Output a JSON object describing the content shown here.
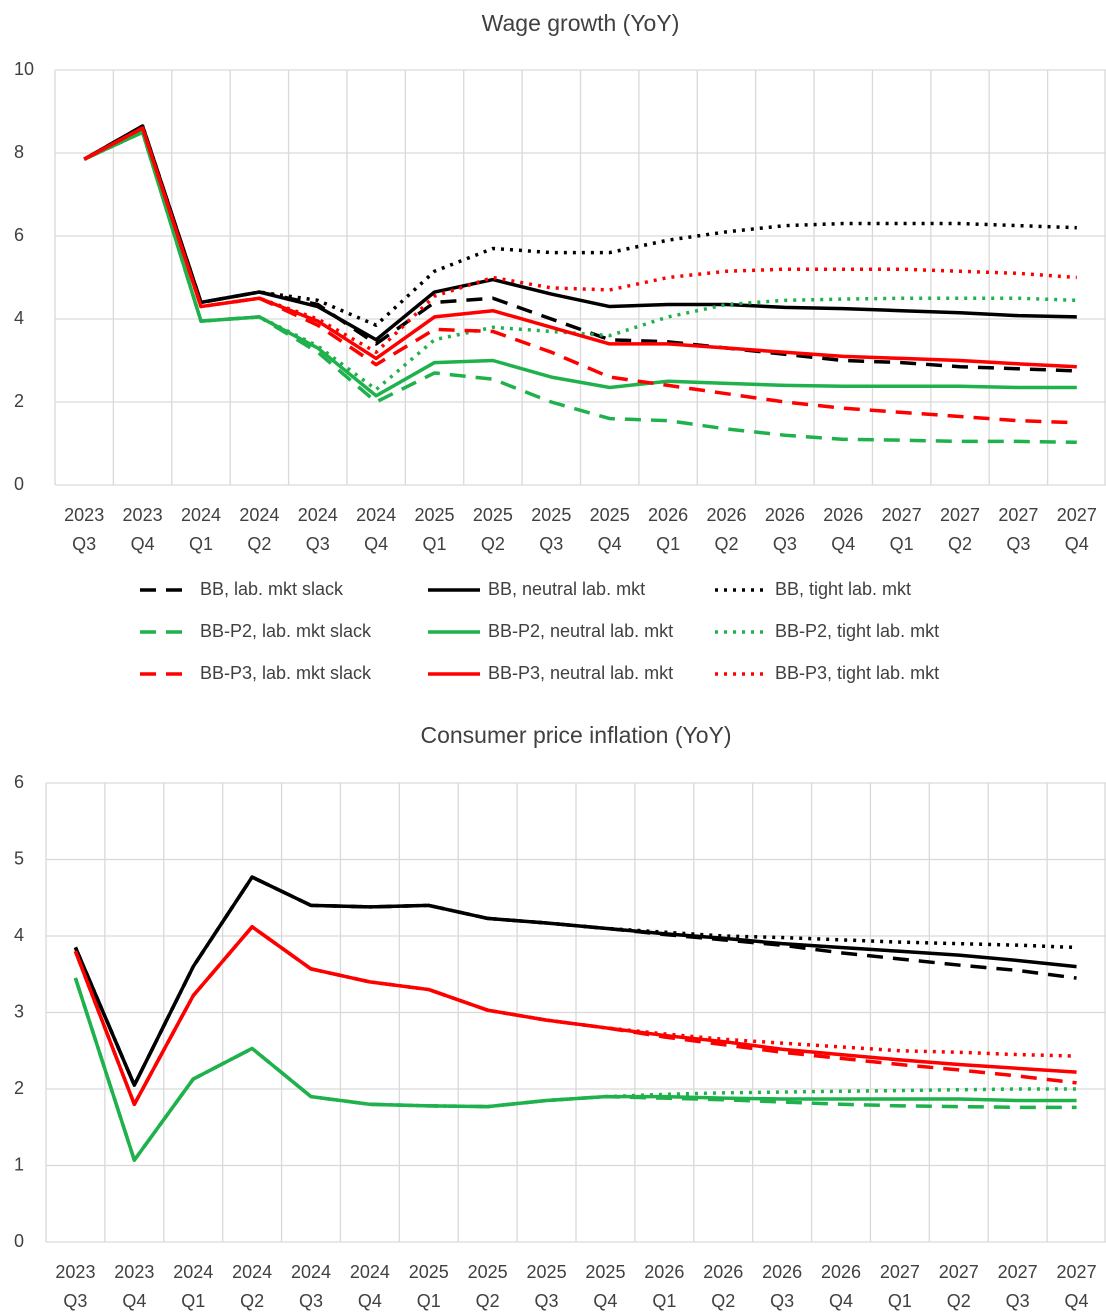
{
  "chart_data": [
    {
      "type": "line",
      "title": "Wage growth (YoY)",
      "categories": [
        [
          "2023",
          "Q3"
        ],
        [
          "2023",
          "Q4"
        ],
        [
          "2024",
          "Q1"
        ],
        [
          "2024",
          "Q2"
        ],
        [
          "2024",
          "Q3"
        ],
        [
          "2024",
          "Q4"
        ],
        [
          "2025",
          "Q1"
        ],
        [
          "2025",
          "Q2"
        ],
        [
          "2025",
          "Q3"
        ],
        [
          "2025",
          "Q4"
        ],
        [
          "2026",
          "Q1"
        ],
        [
          "2026",
          "Q2"
        ],
        [
          "2026",
          "Q3"
        ],
        [
          "2026",
          "Q4"
        ],
        [
          "2027",
          "Q1"
        ],
        [
          "2027",
          "Q2"
        ],
        [
          "2027",
          "Q3"
        ],
        [
          "2027",
          "Q4"
        ]
      ],
      "ylim": [
        0,
        10
      ],
      "yticks": [
        0,
        2,
        4,
        6,
        8,
        10
      ],
      "grid": true,
      "legend": "bottom",
      "series": [
        {
          "name": "BB, lab. mkt slack",
          "color": "#000000",
          "style": "dashed",
          "values": [
            7.85,
            8.65,
            4.4,
            4.65,
            4.35,
            3.4,
            4.4,
            4.5,
            4.0,
            3.5,
            3.45,
            3.3,
            3.15,
            3.0,
            2.95,
            2.85,
            2.8,
            2.75
          ]
        },
        {
          "name": "BB, neutral lab. mkt",
          "color": "#000000",
          "style": "solid",
          "values": [
            7.85,
            8.65,
            4.4,
            4.65,
            4.3,
            3.5,
            4.65,
            4.95,
            4.6,
            4.3,
            4.35,
            4.35,
            4.28,
            4.25,
            4.2,
            4.15,
            4.08,
            4.05
          ]
        },
        {
          "name": "BB, tight lab. mkt",
          "color": "#000000",
          "style": "dotted",
          "values": [
            7.85,
            8.65,
            4.4,
            4.65,
            4.45,
            3.85,
            5.15,
            5.7,
            5.6,
            5.6,
            5.9,
            6.1,
            6.25,
            6.3,
            6.3,
            6.3,
            6.25,
            6.2
          ]
        },
        {
          "name": "BB-P2, lab. mkt slack",
          "color": "#1fb14c",
          "style": "dashed",
          "values": [
            7.85,
            8.5,
            3.95,
            4.05,
            3.2,
            2.0,
            2.7,
            2.55,
            2.0,
            1.6,
            1.55,
            1.35,
            1.2,
            1.1,
            1.08,
            1.05,
            1.05,
            1.03
          ]
        },
        {
          "name": "BB-P2, neutral lab. mkt",
          "color": "#1fb14c",
          "style": "solid",
          "values": [
            7.85,
            8.5,
            3.95,
            4.05,
            3.3,
            2.15,
            2.95,
            3.0,
            2.6,
            2.35,
            2.5,
            2.45,
            2.4,
            2.38,
            2.38,
            2.38,
            2.35,
            2.35
          ]
        },
        {
          "name": "BB-P2, tight lab. mkt",
          "color": "#1fb14c",
          "style": "dotted",
          "values": [
            7.85,
            8.5,
            3.95,
            4.05,
            3.35,
            2.3,
            3.5,
            3.8,
            3.7,
            3.6,
            4.05,
            4.35,
            4.45,
            4.48,
            4.5,
            4.5,
            4.5,
            4.45
          ]
        },
        {
          "name": "BB-P3, lab. mkt slack",
          "color": "#ff0000",
          "style": "dashed",
          "values": [
            7.85,
            8.6,
            4.3,
            4.5,
            3.85,
            2.9,
            3.75,
            3.7,
            3.2,
            2.6,
            2.4,
            2.2,
            2.0,
            1.85,
            1.75,
            1.65,
            1.55,
            1.5
          ]
        },
        {
          "name": "BB-P3, neutral lab. mkt",
          "color": "#ff0000",
          "style": "solid",
          "values": [
            7.85,
            8.6,
            4.3,
            4.5,
            3.95,
            3.05,
            4.05,
            4.2,
            3.8,
            3.4,
            3.4,
            3.3,
            3.2,
            3.1,
            3.05,
            3.0,
            2.92,
            2.85
          ]
        },
        {
          "name": "BB-P3, tight lab. mkt",
          "color": "#ff0000",
          "style": "dotted",
          "values": [
            7.85,
            8.6,
            4.3,
            4.5,
            4.0,
            3.2,
            4.55,
            5.0,
            4.75,
            4.7,
            5.0,
            5.15,
            5.2,
            5.2,
            5.2,
            5.15,
            5.1,
            5.0
          ]
        }
      ]
    },
    {
      "type": "line",
      "title": "Consumer price inflation (YoY)",
      "categories": [
        [
          "2023",
          "Q3"
        ],
        [
          "2023",
          "Q4"
        ],
        [
          "2024",
          "Q1"
        ],
        [
          "2024",
          "Q2"
        ],
        [
          "2024",
          "Q3"
        ],
        [
          "2024",
          "Q4"
        ],
        [
          "2025",
          "Q1"
        ],
        [
          "2025",
          "Q2"
        ],
        [
          "2025",
          "Q3"
        ],
        [
          "2025",
          "Q4"
        ],
        [
          "2026",
          "Q1"
        ],
        [
          "2026",
          "Q2"
        ],
        [
          "2026",
          "Q3"
        ],
        [
          "2026",
          "Q4"
        ],
        [
          "2027",
          "Q1"
        ],
        [
          "2027",
          "Q2"
        ],
        [
          "2027",
          "Q3"
        ],
        [
          "2027",
          "Q4"
        ]
      ],
      "ylim": [
        0,
        6
      ],
      "yticks": [
        0,
        1,
        2,
        3,
        4,
        5,
        6
      ],
      "grid": true,
      "series": [
        {
          "color": "#000000",
          "style": "dashed",
          "values": [
            3.85,
            2.05,
            3.6,
            4.77,
            4.4,
            4.38,
            4.4,
            4.23,
            4.17,
            4.1,
            4.02,
            3.95,
            3.88,
            3.78,
            3.7,
            3.62,
            3.55,
            3.45
          ]
        },
        {
          "color": "#000000",
          "style": "solid",
          "values": [
            3.85,
            2.05,
            3.6,
            4.77,
            4.4,
            4.38,
            4.4,
            4.23,
            4.17,
            4.1,
            4.03,
            3.97,
            3.9,
            3.85,
            3.8,
            3.75,
            3.68,
            3.6
          ]
        },
        {
          "color": "#000000",
          "style": "dotted",
          "values": [
            3.85,
            2.05,
            3.6,
            4.77,
            4.4,
            4.38,
            4.4,
            4.23,
            4.17,
            4.1,
            4.05,
            4.0,
            3.98,
            3.95,
            3.92,
            3.9,
            3.88,
            3.85
          ]
        },
        {
          "color": "#1fb14c",
          "style": "dashed",
          "values": [
            3.45,
            1.07,
            2.13,
            2.53,
            1.9,
            1.8,
            1.78,
            1.77,
            1.85,
            1.9,
            1.88,
            1.86,
            1.83,
            1.8,
            1.78,
            1.77,
            1.76,
            1.76
          ]
        },
        {
          "color": "#1fb14c",
          "style": "solid",
          "values": [
            3.45,
            1.07,
            2.13,
            2.53,
            1.9,
            1.8,
            1.78,
            1.77,
            1.85,
            1.9,
            1.9,
            1.88,
            1.87,
            1.87,
            1.87,
            1.87,
            1.85,
            1.85
          ]
        },
        {
          "color": "#1fb14c",
          "style": "dotted",
          "values": [
            3.45,
            1.07,
            2.13,
            2.53,
            1.9,
            1.8,
            1.78,
            1.77,
            1.85,
            1.9,
            1.93,
            1.95,
            1.96,
            1.97,
            1.98,
            1.99,
            2.0,
            2.0
          ]
        },
        {
          "color": "#ff0000",
          "style": "dashed",
          "values": [
            3.8,
            1.8,
            3.22,
            4.12,
            3.57,
            3.4,
            3.3,
            3.03,
            2.9,
            2.8,
            2.68,
            2.58,
            2.48,
            2.4,
            2.32,
            2.25,
            2.17,
            2.08
          ]
        },
        {
          "color": "#ff0000",
          "style": "solid",
          "values": [
            3.8,
            1.8,
            3.22,
            4.12,
            3.57,
            3.4,
            3.3,
            3.03,
            2.9,
            2.8,
            2.7,
            2.62,
            2.52,
            2.45,
            2.38,
            2.32,
            2.27,
            2.22
          ]
        },
        {
          "color": "#ff0000",
          "style": "dotted",
          "values": [
            3.8,
            1.8,
            3.22,
            4.12,
            3.57,
            3.4,
            3.3,
            3.03,
            2.9,
            2.8,
            2.72,
            2.65,
            2.6,
            2.55,
            2.5,
            2.48,
            2.45,
            2.43
          ]
        }
      ]
    }
  ]
}
